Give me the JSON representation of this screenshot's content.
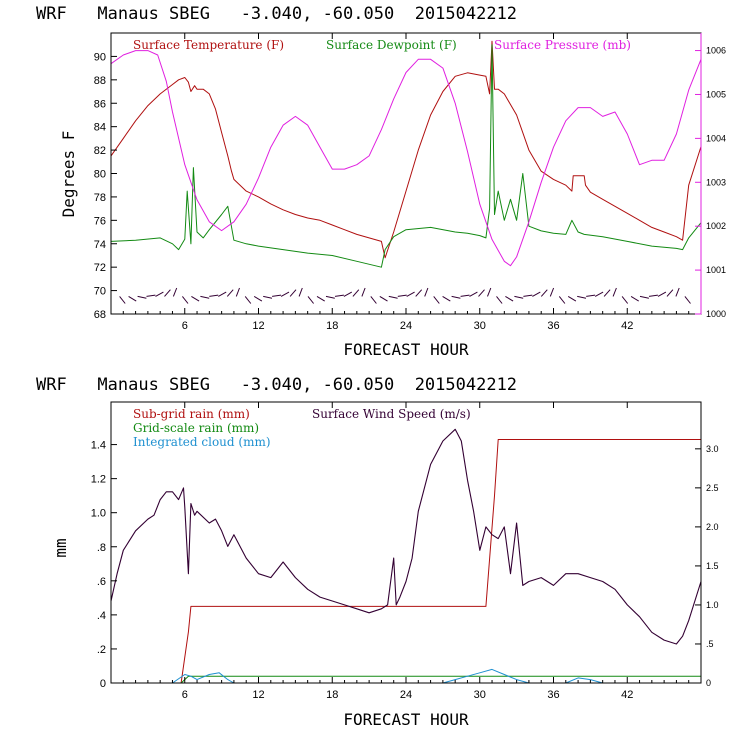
{
  "chart_data": [
    {
      "type": "line",
      "title": "WRF   Manaus SBEG   -3.040, -60.050  2015042212",
      "xlabel": "FORECAST HOUR",
      "ylabel": "Degrees F",
      "xlim": [
        0,
        48
      ],
      "ylim": [
        68,
        92
      ],
      "y2lim": [
        1000,
        1006.4
      ],
      "xticks": [
        "6",
        "12",
        "18",
        "24",
        "30",
        "36",
        "42"
      ],
      "yticks": [
        "68",
        "70",
        "72",
        "74",
        "76",
        "78",
        "80",
        "82",
        "84",
        "86",
        "88",
        "90"
      ],
      "y2ticks": [
        "1000",
        "1001",
        "1002",
        "1003",
        "1004",
        "1005",
        "1006"
      ],
      "legend": [
        "Surface Temperature (F)",
        "Surface Dewpoint (F)",
        "Surface Pressure (mb)"
      ],
      "colors": {
        "temperature": "#b01010",
        "dewpoint": "#138a13",
        "pressure": "#e020e0",
        "wind": "#330033",
        "axis": "#000000",
        "right_axis": "#e020e0"
      },
      "series": [
        {
          "name": "Surface Temperature (F)",
          "axis": "left",
          "x": [
            0,
            1,
            2,
            3,
            4,
            5,
            5.5,
            6,
            6.3,
            6.5,
            6.8,
            7,
            7.5,
            8,
            8.5,
            9,
            9.5,
            9.8,
            10,
            11,
            12,
            13,
            14,
            15,
            16,
            17,
            18,
            19,
            20,
            21,
            22,
            22.3,
            23,
            24,
            25,
            26,
            27,
            28,
            29,
            30,
            30.5,
            30.8,
            31,
            31.2,
            31.5,
            32,
            33,
            34,
            35,
            36,
            37,
            37.5,
            37.6,
            38.5,
            38.6,
            39,
            40,
            41,
            42,
            43,
            44,
            45,
            46,
            46.5,
            47,
            48
          ],
          "y": [
            81.5,
            83,
            84.5,
            85.8,
            86.8,
            87.6,
            88,
            88.2,
            87.8,
            87,
            87.5,
            87.2,
            87.2,
            86.8,
            85.5,
            83.5,
            81.5,
            80.2,
            79.5,
            78.5,
            78,
            77.4,
            76.9,
            76.5,
            76.2,
            76,
            75.6,
            75.2,
            74.8,
            74.5,
            74.2,
            72.8,
            75,
            78.5,
            82,
            85,
            87,
            88.3,
            88.6,
            88.4,
            88.3,
            86.8,
            91.3,
            87.2,
            87.2,
            86.8,
            85,
            82,
            80.2,
            79.5,
            79,
            78.5,
            79.8,
            79.8,
            79,
            78.4,
            77.8,
            77.2,
            76.6,
            76,
            75.4,
            75,
            74.6,
            74.3,
            79,
            82.3
          ]
        },
        {
          "name": "Surface Dewpoint (F)",
          "axis": "left",
          "x": [
            0,
            2,
            4,
            5,
            5.5,
            6,
            6.2,
            6.5,
            6.7,
            7,
            7.5,
            8,
            9,
            9.5,
            10,
            11,
            12,
            14,
            16,
            18,
            20,
            22,
            22.3,
            23,
            24,
            26,
            28,
            29,
            30,
            30.5,
            30.8,
            31,
            31.2,
            31.5,
            32,
            32.5,
            33,
            33.5,
            34,
            35,
            36,
            37,
            37.5,
            38,
            38.5,
            40,
            42,
            44,
            46,
            46.5,
            47,
            48
          ],
          "y": [
            74.2,
            74.3,
            74.5,
            74,
            73.5,
            74.4,
            78.5,
            74,
            80.5,
            75,
            74.5,
            75.2,
            76.5,
            77.2,
            74.3,
            74,
            73.8,
            73.5,
            73.2,
            73,
            72.5,
            72,
            73.5,
            74.6,
            75.2,
            75.4,
            75,
            74.9,
            74.7,
            74.5,
            77,
            91,
            76.5,
            78.5,
            76,
            77.8,
            76,
            80,
            75.5,
            75.1,
            74.9,
            74.8,
            76,
            75,
            74.8,
            74.6,
            74.2,
            73.8,
            73.6,
            73.5,
            74.5,
            75.8
          ]
        },
        {
          "name": "Surface Pressure (mb)",
          "axis": "right",
          "x": [
            0,
            1,
            2,
            3,
            3.8,
            4.5,
            5,
            6,
            7,
            8,
            9,
            10,
            11,
            12,
            13,
            14,
            15,
            16,
            17,
            18,
            19,
            20,
            21,
            22,
            23,
            24,
            25,
            26,
            27,
            28,
            29,
            30,
            31,
            32,
            32.5,
            33,
            34,
            35,
            36,
            37,
            38,
            39,
            40,
            41,
            42,
            43,
            44,
            45,
            46,
            47,
            48
          ],
          "y": [
            1005.7,
            1005.9,
            1006,
            1006,
            1005.9,
            1005.3,
            1004.6,
            1003.4,
            1002.6,
            1002.1,
            1001.9,
            1002.1,
            1002.5,
            1003.1,
            1003.8,
            1004.3,
            1004.5,
            1004.3,
            1003.8,
            1003.3,
            1003.3,
            1003.4,
            1003.6,
            1004.2,
            1004.9,
            1005.5,
            1005.8,
            1005.8,
            1005.6,
            1004.8,
            1003.7,
            1002.5,
            1001.7,
            1001.2,
            1001.1,
            1001.3,
            1002.1,
            1003,
            1003.8,
            1004.4,
            1004.7,
            1004.7,
            1004.5,
            1004.6,
            1004.1,
            1003.4,
            1003.5,
            1003.5,
            1004.1,
            1005.1,
            1005.8
          ]
        }
      ],
      "wind_barbs": {
        "y": 69.5,
        "from_hour": 0.7,
        "to_hour": 47.3,
        "step_hours": 0.73
      }
    },
    {
      "type": "line",
      "title": "WRF   Manaus SBEG   -3.040, -60.050  2015042212",
      "xlabel": "FORECAST HOUR",
      "ylabel": "mm",
      "xlim": [
        0,
        48
      ],
      "ylim": [
        0,
        1.65
      ],
      "y2lim": [
        0,
        3.6
      ],
      "xticks": [
        "6",
        "12",
        "18",
        "24",
        "30",
        "36",
        "42"
      ],
      "yticks": [
        "0",
        ".2",
        ".4",
        ".6",
        ".8",
        "1.0",
        "1.2",
        "1.4"
      ],
      "y2ticks": [
        "0",
        ".5",
        "1.0",
        "1.5",
        "2.0",
        "2.5",
        "3.0"
      ],
      "legend": [
        "Sub-grid rain (mm)",
        "Surface Wind Speed (m/s)",
        "Grid-scale rain (mm)",
        "Integrated cloud (mm)"
      ],
      "colors": {
        "subgrid_rain": "#b01010",
        "wind_speed": "#330033",
        "grid_rain": "#138a13",
        "cloud": "#1e90d0",
        "axis": "#000000"
      },
      "series": [
        {
          "name": "Sub-grid rain (mm)",
          "axis": "left",
          "x": [
            0,
            5.7,
            6.3,
            6.5,
            30.3,
            30.5,
            31.2,
            31.5,
            48
          ],
          "y": [
            0,
            0,
            0.3,
            0.45,
            0.45,
            0.45,
            1.1,
            1.43,
            1.43
          ]
        },
        {
          "name": "Surface Wind Speed (m/s)",
          "axis": "right",
          "x": [
            0,
            0.5,
            1,
            2,
            3,
            3.5,
            4,
            4.5,
            5,
            5.5,
            5.9,
            6,
            6.3,
            6.5,
            6.8,
            7,
            8,
            8.5,
            9,
            9.5,
            10,
            11,
            12,
            13,
            14,
            15,
            16,
            17,
            18,
            19,
            20,
            21,
            22,
            22.5,
            23,
            23.2,
            23.5,
            24,
            24.5,
            25,
            26,
            27,
            28,
            28.5,
            29,
            29.5,
            30,
            30.5,
            31,
            31.5,
            32,
            32.5,
            33,
            33.5,
            34,
            35,
            36,
            37,
            38,
            39,
            40,
            41,
            42,
            43,
            44,
            45,
            46,
            46.5,
            47,
            48
          ],
          "y": [
            1.05,
            1.4,
            1.7,
            1.95,
            2.1,
            2.15,
            2.35,
            2.45,
            2.45,
            2.35,
            2.5,
            2.25,
            1.4,
            2.3,
            2.15,
            2.2,
            2.05,
            2.1,
            1.95,
            1.75,
            1.9,
            1.6,
            1.4,
            1.35,
            1.55,
            1.35,
            1.2,
            1.1,
            1.05,
            1.0,
            0.95,
            0.9,
            0.95,
            1.0,
            1.6,
            1.0,
            1.1,
            1.3,
            1.6,
            2.2,
            2.8,
            3.1,
            3.25,
            3.1,
            2.6,
            2.2,
            1.7,
            2.0,
            1.9,
            1.85,
            2.0,
            1.4,
            2.05,
            1.25,
            1.3,
            1.35,
            1.25,
            1.4,
            1.4,
            1.35,
            1.3,
            1.2,
            1.0,
            0.85,
            0.65,
            0.55,
            0.5,
            0.6,
            0.8,
            1.3
          ]
        },
        {
          "name": "Grid-scale rain (mm)",
          "axis": "left",
          "x": [
            0,
            5.7,
            6.3,
            48
          ],
          "y": [
            0,
            0,
            0.04,
            0.04
          ]
        },
        {
          "name": "Integrated cloud (mm)",
          "axis": "left",
          "x": [
            0,
            5,
            6,
            6.5,
            7,
            8,
            8.8,
            9.5,
            10,
            27,
            28,
            29,
            30,
            31,
            32,
            33,
            34,
            37,
            38,
            39,
            40,
            48
          ],
          "y": [
            0,
            0,
            0.05,
            0.04,
            0.02,
            0.05,
            0.06,
            0.02,
            0,
            0,
            0.02,
            0.04,
            0.06,
            0.08,
            0.05,
            0.02,
            0,
            0,
            0.03,
            0.02,
            0,
            0
          ]
        }
      ]
    }
  ]
}
